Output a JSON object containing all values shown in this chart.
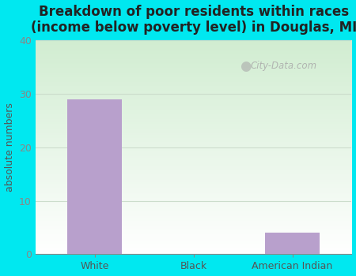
{
  "title": "Breakdown of poor residents within races\n(income below poverty level) in Douglas, MI",
  "categories": [
    "White",
    "Black",
    "American Indian"
  ],
  "values": [
    29,
    0,
    4
  ],
  "bar_color": "#b8a0cc",
  "ylabel": "absolute numbers",
  "ylim": [
    0,
    40
  ],
  "yticks": [
    0,
    10,
    20,
    30,
    40
  ],
  "bg_outer": "#00e8f0",
  "title_fontsize": 12,
  "axis_label_fontsize": 9,
  "tick_fontsize": 9,
  "watermark": "City-Data.com",
  "grid_color": "#ccddcc",
  "bar_width": 0.55
}
